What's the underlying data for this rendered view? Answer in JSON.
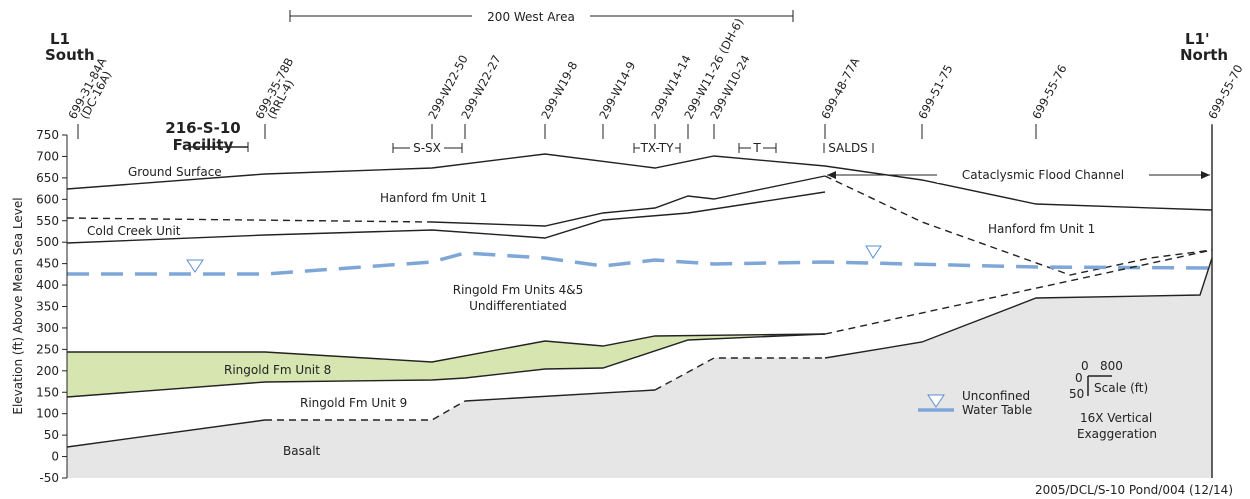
{
  "header": {
    "left_label": "L1",
    "left_direction": "South",
    "right_label": "L1'",
    "right_direction": "North",
    "area": "200 West Area",
    "facility": [
      "216-S-10",
      "Facility"
    ]
  },
  "wells": [
    {
      "name": "699-31-84A",
      "alias": "(DC-16A)"
    },
    {
      "name": "699-35-78B",
      "alias": "(RRL-4)"
    },
    {
      "name": "299-W22-50"
    },
    {
      "name": "299-W22-27"
    },
    {
      "name": "299-W19-8"
    },
    {
      "name": "299-W14-9"
    },
    {
      "name": "299-W14-14"
    },
    {
      "name": "299-W11-26 (DH-6)"
    },
    {
      "name": "299-W10-24"
    },
    {
      "name": "699-48-77A"
    },
    {
      "name": "699-51-75"
    },
    {
      "name": "699-55-76"
    },
    {
      "name": "699-55-70"
    }
  ],
  "zones": [
    "S-SX",
    "TX-TY",
    "T",
    "SALDS"
  ],
  "y_axis": {
    "label": "Elevation (ft) Above Mean Sea Level",
    "ticks": [
      750,
      700,
      650,
      600,
      550,
      500,
      450,
      400,
      350,
      300,
      250,
      200,
      150,
      100,
      50,
      0,
      -50
    ]
  },
  "units": {
    "ground": "Ground Surface",
    "hanford_left": "Hanford fm Unit 1",
    "hanford_right": "Hanford fm Unit 1",
    "cold_creek": "Cold Creek Unit",
    "ringold_45": [
      "Ringold Fm Units 4&5",
      "Undifferentiated"
    ],
    "ringold_8": "Ringold Fm Unit 8",
    "ringold_9": "Ringold Fm Unit 9",
    "basalt": "Basalt"
  },
  "channel": "Cataclysmic Flood Channel",
  "legend": {
    "water_table": [
      "Unconfined",
      "Water Table"
    ],
    "scale": "Scale (ft)",
    "scale_x": [
      0,
      800
    ],
    "scale_y": [
      0,
      50
    ],
    "exaggeration": [
      "16X Vertical",
      "Exaggeration"
    ]
  },
  "footer": "2005/DCL/S-10 Pond/004 (12/14)"
}
